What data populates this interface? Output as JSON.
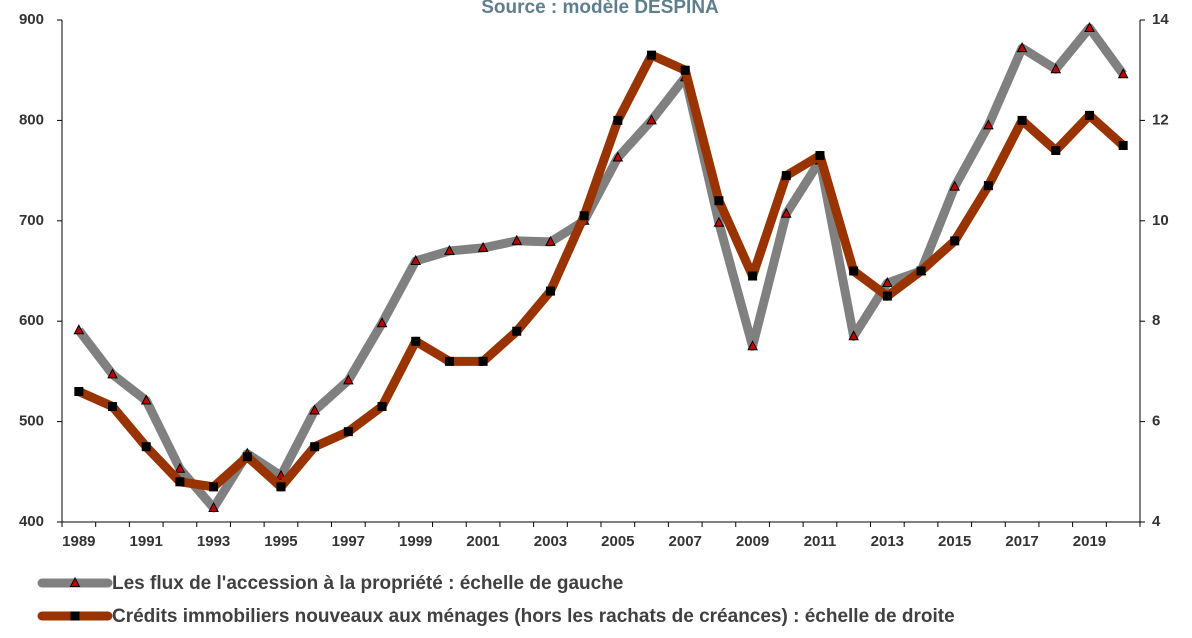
{
  "chart_data": {
    "type": "line",
    "title": "Source : modèle DESPINA",
    "categories": [
      "1989",
      null,
      "1991",
      null,
      "1993",
      null,
      "1995",
      null,
      "1997",
      null,
      "1999",
      null,
      "2001",
      null,
      "2003",
      null,
      "2005",
      null,
      "2007",
      null,
      "2009",
      null,
      "2011",
      null,
      "2013",
      null,
      "2015",
      null,
      "2017",
      null,
      "2019",
      null
    ],
    "series": [
      {
        "name": "Les flux de l'accession à la propriété : échelle de gauche",
        "color": "#808080",
        "marker_color": "#c00000",
        "values": [
          591,
          547,
          521,
          453,
          414,
          468,
          446,
          511,
          541,
          598,
          660,
          670,
          673,
          680,
          679,
          700,
          763,
          800,
          843,
          698,
          575,
          707,
          760,
          585,
          638,
          650,
          734,
          795,
          872,
          851,
          892,
          846
        ]
      },
      {
        "name": "Crédits immobiliers nouveaux aux ménages (hors les rachats de créances) : échelle de droite",
        "color": "#993300",
        "marker_color": "#000000",
        "axis": "y2",
        "values": [
          6.6,
          6.3,
          5.5,
          4.8,
          4.7,
          5.3,
          4.7,
          5.5,
          5.8,
          6.3,
          7.6,
          7.2,
          7.2,
          7.8,
          8.6,
          10.1,
          12.0,
          13.3,
          13.0,
          10.4,
          8.9,
          10.9,
          11.3,
          9.0,
          8.5,
          9.0,
          9.6,
          10.7,
          12.0,
          11.4,
          12.1,
          11.5
        ]
      }
    ],
    "ylim": [
      400,
      900
    ],
    "yticks": [
      400,
      500,
      600,
      700,
      800,
      900
    ],
    "y2lim": [
      4,
      14
    ],
    "y2ticks": [
      4,
      6,
      8,
      10,
      12,
      14
    ]
  }
}
